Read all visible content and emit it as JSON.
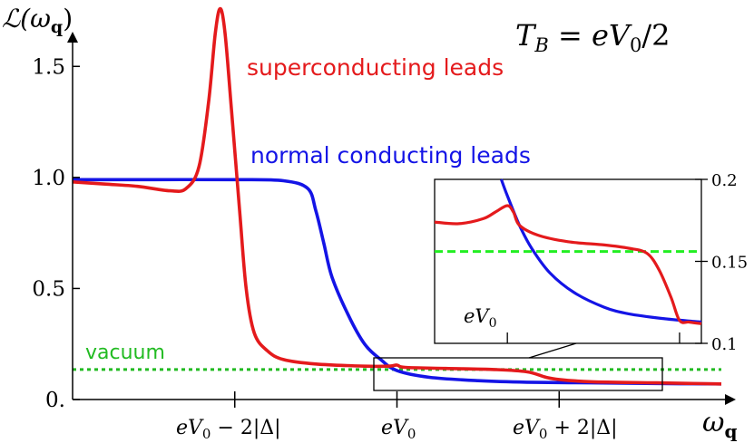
{
  "chart_data": {
    "type": "line",
    "title": "T_B = eV_0/2",
    "ylabel": "ℒ(ω_q)",
    "xlabel": "ω_q",
    "ylim": [
      0,
      1.75
    ],
    "y_ticks": [
      {
        "value": 0.0,
        "label": "0."
      },
      {
        "value": 0.5,
        "label": "0.5"
      },
      {
        "value": 1.0,
        "label": "1.0"
      },
      {
        "value": 1.5,
        "label": "1.5"
      }
    ],
    "x_ticks": [
      {
        "value": -1,
        "label": "eV_0 − 2|Δ|"
      },
      {
        "value": 0,
        "label": "eV_0"
      },
      {
        "value": 1,
        "label": "eV_0 + 2|Δ|"
      }
    ],
    "xlim": [
      -2,
      2
    ],
    "series": [
      {
        "name": "superconducting leads",
        "color": "#e41a1c",
        "points": [
          [
            -2.0,
            0.98
          ],
          [
            -1.8,
            0.97
          ],
          [
            -1.6,
            0.96
          ],
          [
            -1.4,
            0.94
          ],
          [
            -1.3,
            0.95
          ],
          [
            -1.22,
            1.05
          ],
          [
            -1.16,
            1.35
          ],
          [
            -1.12,
            1.65
          ],
          [
            -1.09,
            1.76
          ],
          [
            -1.06,
            1.65
          ],
          [
            -1.02,
            1.3
          ],
          [
            -0.97,
            0.85
          ],
          [
            -0.93,
            0.5
          ],
          [
            -0.88,
            0.3
          ],
          [
            -0.8,
            0.22
          ],
          [
            -0.7,
            0.18
          ],
          [
            -0.5,
            0.16
          ],
          [
            -0.2,
            0.15
          ],
          [
            -0.05,
            0.15
          ],
          [
            0.0,
            0.155
          ],
          [
            0.05,
            0.145
          ],
          [
            0.3,
            0.14
          ],
          [
            0.6,
            0.135
          ],
          [
            0.8,
            0.125
          ],
          [
            0.92,
            0.1
          ],
          [
            1.0,
            0.09
          ],
          [
            1.2,
            0.08
          ],
          [
            1.6,
            0.075
          ],
          [
            2.0,
            0.07
          ]
        ]
      },
      {
        "name": "normal conducting leads",
        "color": "#1414e6",
        "points": [
          [
            -2.0,
            0.99
          ],
          [
            -1.5,
            0.99
          ],
          [
            -1.0,
            0.99
          ],
          [
            -0.7,
            0.985
          ],
          [
            -0.55,
            0.95
          ],
          [
            -0.5,
            0.85
          ],
          [
            -0.45,
            0.7
          ],
          [
            -0.4,
            0.55
          ],
          [
            -0.3,
            0.38
          ],
          [
            -0.2,
            0.25
          ],
          [
            -0.1,
            0.18
          ],
          [
            0.0,
            0.13
          ],
          [
            0.2,
            0.1
          ],
          [
            0.5,
            0.085
          ],
          [
            0.8,
            0.078
          ],
          [
            1.2,
            0.075
          ],
          [
            1.6,
            0.072
          ],
          [
            2.0,
            0.07
          ]
        ]
      },
      {
        "name": "vacuum",
        "color": "#22bb22",
        "dashed": true,
        "points": [
          [
            -2.0,
            0.135
          ],
          [
            2.0,
            0.135
          ]
        ]
      }
    ],
    "inset": {
      "ylim": [
        0.1,
        0.2
      ],
      "xlim": [
        -0.6,
        1.6
      ],
      "y_ticks": [
        {
          "value": 0.2,
          "label": "0.2"
        },
        {
          "value": 0.15,
          "label": "0.15"
        },
        {
          "value": 0.1,
          "label": "0.1"
        }
      ],
      "x_ticks": [
        {
          "value": 0,
          "label": "eV_0"
        }
      ],
      "series": [
        {
          "name": "superconducting leads",
          "color": "#e41a1c",
          "points": [
            [
              -0.6,
              0.174
            ],
            [
              -0.4,
              0.173
            ],
            [
              -0.2,
              0.176
            ],
            [
              -0.1,
              0.18
            ],
            [
              0.0,
              0.184
            ],
            [
              0.05,
              0.18
            ],
            [
              0.1,
              0.172
            ],
            [
              0.25,
              0.166
            ],
            [
              0.5,
              0.162
            ],
            [
              0.8,
              0.16
            ],
            [
              1.0,
              0.158
            ],
            [
              1.15,
              0.155
            ],
            [
              1.25,
              0.145
            ],
            [
              1.35,
              0.128
            ],
            [
              1.42,
              0.114
            ],
            [
              1.5,
              0.113
            ],
            [
              1.6,
              0.112
            ]
          ]
        },
        {
          "name": "normal conducting leads",
          "color": "#1414e6",
          "points": [
            [
              -0.05,
              0.2
            ],
            [
              0.0,
              0.19
            ],
            [
              0.1,
              0.172
            ],
            [
              0.2,
              0.158
            ],
            [
              0.35,
              0.143
            ],
            [
              0.55,
              0.131
            ],
            [
              0.8,
              0.122
            ],
            [
              1.0,
              0.118
            ],
            [
              1.3,
              0.115
            ],
            [
              1.6,
              0.113
            ]
          ]
        },
        {
          "name": "vacuum",
          "color": "#22ee22",
          "dashed": true,
          "points": [
            [
              -0.6,
              0.156
            ],
            [
              1.6,
              0.156
            ]
          ]
        }
      ]
    }
  },
  "labels": {
    "title_main": "T",
    "title_sub": "B",
    "title_rest": " = eV",
    "title_sub2": "0",
    "title_end": "/2",
    "ylabel_main": "ℒ(ω",
    "ylabel_sub": "q",
    "ylabel_end": ")",
    "xlabel_main": "ω",
    "xlabel_sub": "q",
    "legend_super": "superconducting leads",
    "legend_normal": "normal conducting leads",
    "legend_vacuum": "vacuum",
    "xt1_a": "eV",
    "xt1_sub": "0",
    "xt1_b": " − 2|Δ|",
    "xt2_a": "eV",
    "xt2_sub": "0",
    "xt3_a": "eV",
    "xt3_sub": "0",
    "xt3_b": " + 2|Δ|",
    "inset_xt_a": "eV",
    "inset_xt_sub": "0"
  }
}
